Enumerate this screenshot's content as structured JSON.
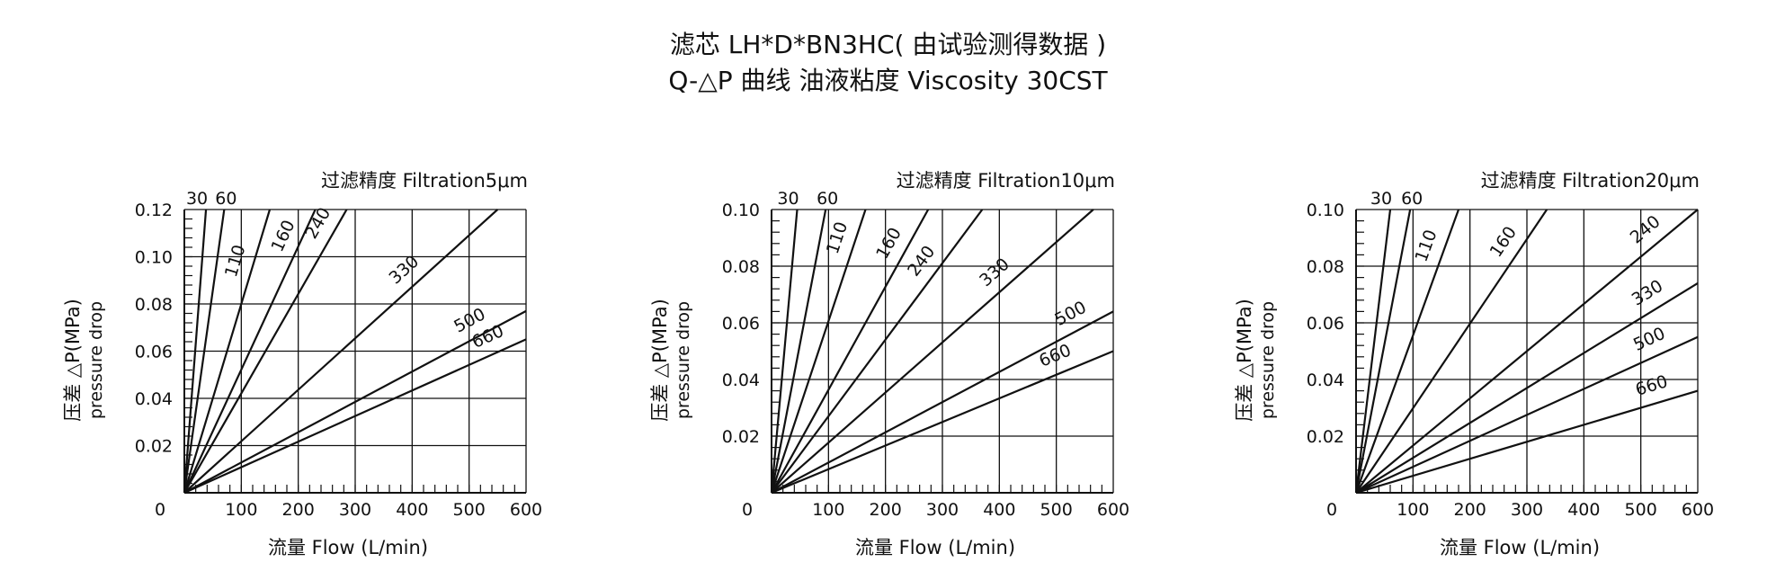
{
  "header": {
    "title": "滤芯 LH*D*BN3HC( 由试验测得数据 )",
    "subtitle": "Q-△P 曲线 油液粘度 Viscosity 30CST"
  },
  "chart_data": [
    {
      "type": "line",
      "title": "过滤精度 Filtration5μm",
      "xlabel": "流量 Flow (L/min)",
      "ylabel": "压差 △P(MPa)",
      "ylabel2": "pressure drop",
      "xlim": [
        0,
        600
      ],
      "ylim": [
        0,
        0.12
      ],
      "xticks": [
        "0",
        "100",
        "200",
        "300",
        "400",
        "500",
        "600"
      ],
      "yticks": [
        "0.02",
        "0.04",
        "0.06",
        "0.08",
        "0.10",
        "0.12"
      ],
      "grid": true,
      "series": [
        {
          "name": "30",
          "x": [
            0,
            38
          ],
          "y": [
            0,
            0.12
          ]
        },
        {
          "name": "60",
          "x": [
            0,
            70
          ],
          "y": [
            0,
            0.12
          ]
        },
        {
          "name": "110",
          "x": [
            0,
            150
          ],
          "y": [
            0,
            0.12
          ]
        },
        {
          "name": "160",
          "x": [
            0,
            230
          ],
          "y": [
            0,
            0.12
          ]
        },
        {
          "name": "240",
          "x": [
            0,
            285
          ],
          "y": [
            0,
            0.12
          ]
        },
        {
          "name": "330",
          "x": [
            0,
            550
          ],
          "y": [
            0,
            0.12
          ]
        },
        {
          "name": "500",
          "x": [
            0,
            600
          ],
          "y": [
            0,
            0.077
          ]
        },
        {
          "name": "660",
          "x": [
            0,
            600
          ],
          "y": [
            0,
            0.065
          ]
        }
      ]
    },
    {
      "type": "line",
      "title": "过滤精度 Filtration10μm",
      "xlabel": "流量 Flow (L/min)",
      "ylabel": "压差 △P(MPa)",
      "ylabel2": "pressure drop",
      "xlim": [
        0,
        600
      ],
      "ylim": [
        0,
        0.1
      ],
      "xticks": [
        "0",
        "100",
        "200",
        "300",
        "400",
        "500",
        "600"
      ],
      "yticks": [
        "0.02",
        "0.04",
        "0.06",
        "0.08",
        "0.10"
      ],
      "grid": true,
      "series": [
        {
          "name": "30",
          "x": [
            0,
            45
          ],
          "y": [
            0,
            0.1
          ]
        },
        {
          "name": "60",
          "x": [
            0,
            95
          ],
          "y": [
            0,
            0.1
          ]
        },
        {
          "name": "110",
          "x": [
            0,
            165
          ],
          "y": [
            0,
            0.1
          ]
        },
        {
          "name": "160",
          "x": [
            0,
            275
          ],
          "y": [
            0,
            0.1
          ]
        },
        {
          "name": "240",
          "x": [
            0,
            370
          ],
          "y": [
            0,
            0.1
          ]
        },
        {
          "name": "330",
          "x": [
            0,
            565
          ],
          "y": [
            0,
            0.1
          ]
        },
        {
          "name": "500",
          "x": [
            0,
            600
          ],
          "y": [
            0,
            0.064
          ]
        },
        {
          "name": "660",
          "x": [
            0,
            600
          ],
          "y": [
            0,
            0.05
          ]
        }
      ]
    },
    {
      "type": "line",
      "title": "过滤精度 Filtration20μm",
      "xlabel": "流量 Flow (L/min)",
      "ylabel": "压差 △P(MPa)",
      "ylabel2": "pressure drop",
      "xlim": [
        0,
        600
      ],
      "ylim": [
        0,
        0.1
      ],
      "xticks": [
        "0",
        "100",
        "200",
        "300",
        "400",
        "500",
        "600"
      ],
      "yticks": [
        "0.02",
        "0.04",
        "0.06",
        "0.08",
        "0.10"
      ],
      "grid": true,
      "series": [
        {
          "name": "30",
          "x": [
            0,
            60
          ],
          "y": [
            0,
            0.1
          ]
        },
        {
          "name": "60",
          "x": [
            0,
            95
          ],
          "y": [
            0,
            0.1
          ]
        },
        {
          "name": "110",
          "x": [
            0,
            180
          ],
          "y": [
            0,
            0.1
          ]
        },
        {
          "name": "160",
          "x": [
            0,
            335
          ],
          "y": [
            0,
            0.1
          ]
        },
        {
          "name": "240",
          "x": [
            0,
            600
          ],
          "y": [
            0,
            0.1
          ]
        },
        {
          "name": "330",
          "x": [
            0,
            600
          ],
          "y": [
            0,
            0.074
          ]
        },
        {
          "name": "500",
          "x": [
            0,
            600
          ],
          "y": [
            0,
            0.055
          ]
        },
        {
          "name": "660",
          "x": [
            0,
            600
          ],
          "y": [
            0,
            0.036
          ]
        }
      ]
    }
  ]
}
